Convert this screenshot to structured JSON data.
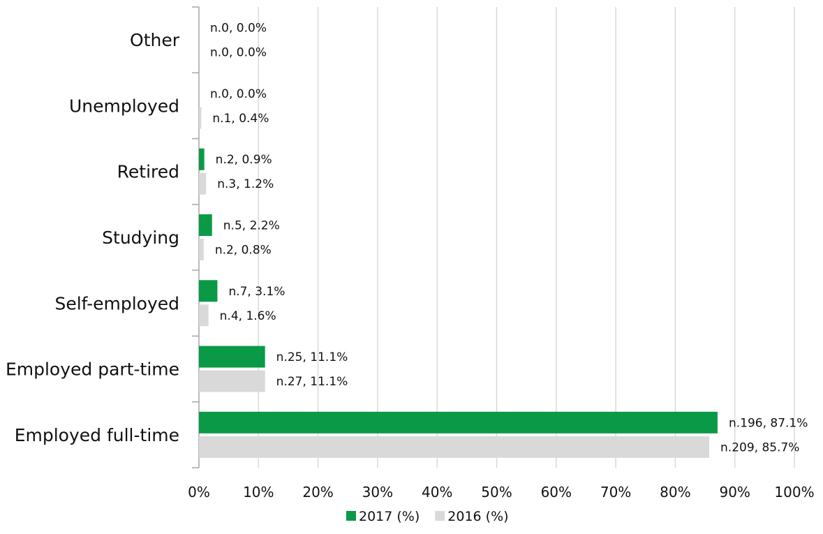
{
  "chart_data": {
    "type": "bar",
    "orientation": "horizontal",
    "categories": [
      "Other",
      "Unemployed",
      "Retired",
      "Studying",
      "Self-employed",
      "Employed part-time",
      "Employed full-time"
    ],
    "series": [
      {
        "name": "2017 (%)",
        "color": "#0a9a47",
        "values": [
          0.0,
          0.0,
          0.9,
          2.2,
          3.1,
          11.1,
          87.1
        ],
        "labels": [
          "n.0, 0.0%",
          "n.0, 0.0%",
          "n.2, 0.9%",
          "n.5, 2.2%",
          "n.7, 3.1%",
          "n.25, 11.1%",
          "n.196, 87.1%"
        ]
      },
      {
        "name": "2016 (%)",
        "color": "#d9d9d9",
        "values": [
          0.0,
          0.4,
          1.2,
          0.8,
          1.6,
          11.1,
          85.7
        ],
        "labels": [
          "n.0, 0.0%",
          "n.1, 0.4%",
          "n.3, 1.2%",
          "n.2, 0.8%",
          "n.4, 1.6%",
          "n.27, 11.1%",
          "n.209, 85.7%"
        ]
      }
    ],
    "xlim": [
      0,
      100
    ],
    "xticks": [
      "0%",
      "10%",
      "20%",
      "30%",
      "40%",
      "50%",
      "60%",
      "70%",
      "80%",
      "90%",
      "100%"
    ],
    "grid": true,
    "legend_position": "bottom"
  }
}
